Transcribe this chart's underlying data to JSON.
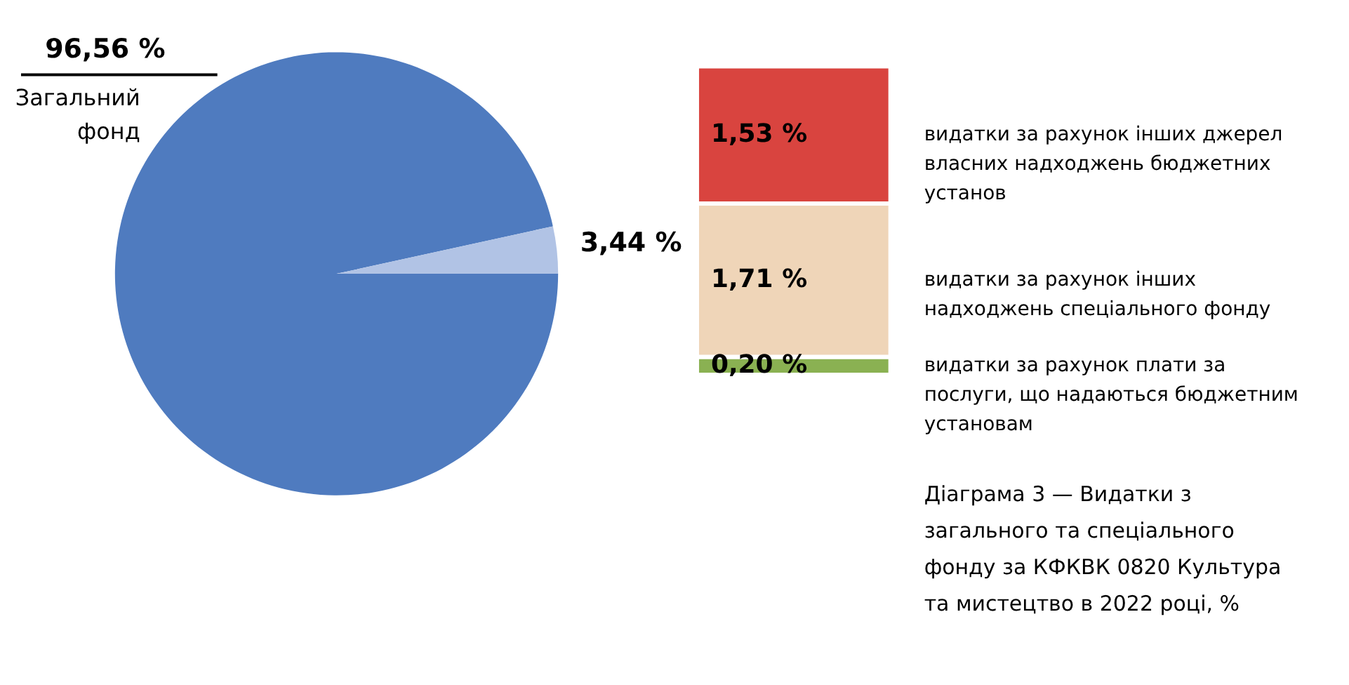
{
  "chart_data": [
    {
      "type": "pie",
      "categories": [
        "Загальний фонд",
        null
      ],
      "values": [
        96.56,
        3.44
      ],
      "colors": [
        "#4f7bbf",
        "#b1c3e5"
      ],
      "value_labels": [
        "96,56 %",
        "3,44 %"
      ]
    },
    {
      "type": "bar",
      "stacked": true,
      "categories": [
        null
      ],
      "tick_labels": false,
      "series": [
        {
          "name": "видатки за рахунок плати за послуги, що надаються бюджетним установам",
          "color": "#8ab152",
          "values": [
            0.2
          ],
          "value_labels": [
            "0,20 %"
          ]
        },
        {
          "name": "видатки за рахунок інших надходжень спеціального фонду",
          "color": "#efd5b8",
          "values": [
            1.71
          ],
          "value_labels": [
            "1,71 %"
          ]
        },
        {
          "name": "видатки за рахунок інших джерел власних надходжень бюджетних установ",
          "color": "#d9443f",
          "values": [
            1.53
          ],
          "value_labels": [
            "1,53 %"
          ]
        }
      ],
      "annotations": [
        "Діаграма 3 — Видатки з загального та спеціального фонду за КФКВК 0820 Культура та мистецтво в 2022 році, %"
      ]
    }
  ]
}
